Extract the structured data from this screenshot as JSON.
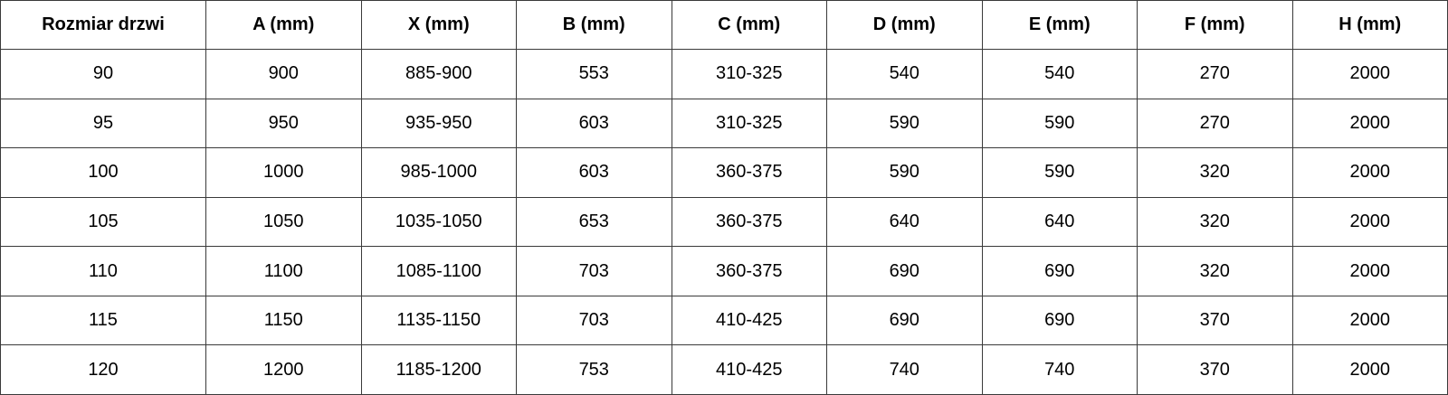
{
  "table": {
    "headers": [
      "Rozmiar drzwi",
      "A (mm)",
      "X (mm)",
      "B (mm)",
      "C (mm)",
      "D (mm)",
      "E (mm)",
      "F (mm)",
      "H (mm)"
    ],
    "rows": [
      [
        "90",
        "900",
        "885-900",
        "553",
        "310-325",
        "540",
        "540",
        "270",
        "2000"
      ],
      [
        "95",
        "950",
        "935-950",
        "603",
        "310-325",
        "590",
        "590",
        "270",
        "2000"
      ],
      [
        "100",
        "1000",
        "985-1000",
        "603",
        "360-375",
        "590",
        "590",
        "320",
        "2000"
      ],
      [
        "105",
        "1050",
        "1035-1050",
        "653",
        "360-375",
        "640",
        "640",
        "320",
        "2000"
      ],
      [
        "110",
        "1100",
        "1085-1100",
        "703",
        "360-375",
        "690",
        "690",
        "320",
        "2000"
      ],
      [
        "115",
        "1150",
        "1135-1150",
        "703",
        "410-425",
        "690",
        "690",
        "370",
        "2000"
      ],
      [
        "120",
        "1200",
        "1185-1200",
        "753",
        "410-425",
        "740",
        "740",
        "370",
        "2000"
      ]
    ]
  }
}
